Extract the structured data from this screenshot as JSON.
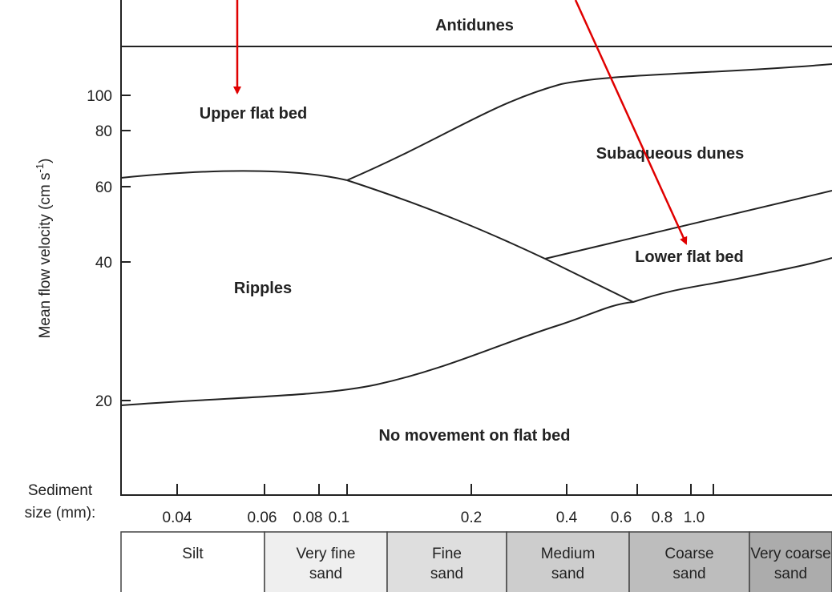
{
  "chart_data": {
    "type": "phase-diagram",
    "regions": [
      "Antidunes",
      "Upper flat bed",
      "Subaqueous dunes",
      "Lower flat bed",
      "Ripples",
      "No movement on flat bed"
    ],
    "y_axis": {
      "label": "Mean flow velocity (cm s",
      "label_superscript": "-1",
      "label_end": ")",
      "log": true,
      "ticks": [
        100,
        80,
        60,
        40,
        20
      ]
    },
    "x_axis": {
      "label": [
        "Sediment",
        "size (mm):"
      ],
      "log": true,
      "ticks": [
        0.04,
        0.06,
        0.08,
        0.1,
        0.2,
        0.4,
        0.6,
        0.8,
        {
          "value": 1.0,
          "label": "1.0"
        }
      ]
    },
    "grain_classes": [
      [
        "Silt"
      ],
      [
        "Very fine",
        "sand"
      ],
      [
        "Fine",
        "sand"
      ],
      [
        "Medium",
        "sand"
      ],
      [
        "Coarse",
        "sand"
      ],
      [
        "Very coarse",
        "sand"
      ]
    ]
  }
}
